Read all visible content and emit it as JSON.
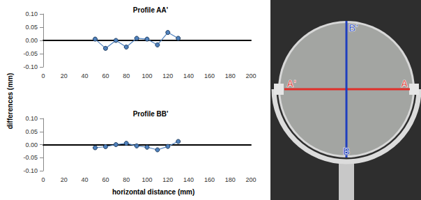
{
  "chart_data": [
    {
      "type": "line",
      "title": "Profile AA'",
      "x": [
        50,
        60,
        70,
        80,
        90,
        100,
        110,
        120,
        130
      ],
      "values": [
        0.005,
        -0.03,
        0.0,
        -0.025,
        0.008,
        0.005,
        -0.017,
        0.03,
        0.008
      ],
      "color": "#4f81bd",
      "marker": "circle",
      "xlim": [
        0,
        200
      ],
      "xticks": [
        0,
        20,
        40,
        60,
        80,
        100,
        120,
        140,
        160,
        180,
        200
      ],
      "ylim": [
        -0.1,
        0.1
      ],
      "yticks": [
        {
          "value": -0.1,
          "label": "-0.10"
        },
        {
          "value": -0.05,
          "label": "-0.05"
        },
        {
          "value": 0,
          "label": "0.00"
        },
        {
          "value": 0.05,
          "label": "0.05"
        },
        {
          "value": 0.1,
          "label": "0.10"
        }
      ],
      "grid": false
    },
    {
      "type": "line",
      "title": "Profile BB'",
      "x": [
        50,
        60,
        70,
        80,
        90,
        100,
        110,
        120,
        130
      ],
      "values": [
        -0.012,
        -0.008,
        0.0,
        0.005,
        -0.005,
        -0.01,
        -0.02,
        -0.007,
        0.012
      ],
      "color": "#4f81bd",
      "marker": "circle",
      "xlim": [
        0,
        200
      ],
      "xticks": [
        0,
        20,
        40,
        60,
        80,
        100,
        120,
        140,
        160,
        180,
        200
      ],
      "ylim": [
        -0.1,
        0.1
      ],
      "yticks": [
        {
          "value": -0.1,
          "label": "-0.10"
        },
        {
          "value": -0.05,
          "label": "-0.05"
        },
        {
          "value": 0,
          "label": "0.00"
        },
        {
          "value": 0.05,
          "label": "0.05"
        },
        {
          "value": 0.1,
          "label": "0.10"
        }
      ],
      "grid": false
    }
  ],
  "axis_labels": {
    "x": "horizontal distance (mm)",
    "y": "differences (mm)"
  },
  "photo": {
    "labels": [
      {
        "text": "A'"
      },
      {
        "text": "A"
      },
      {
        "text": "B'"
      },
      {
        "text": "B"
      }
    ]
  }
}
